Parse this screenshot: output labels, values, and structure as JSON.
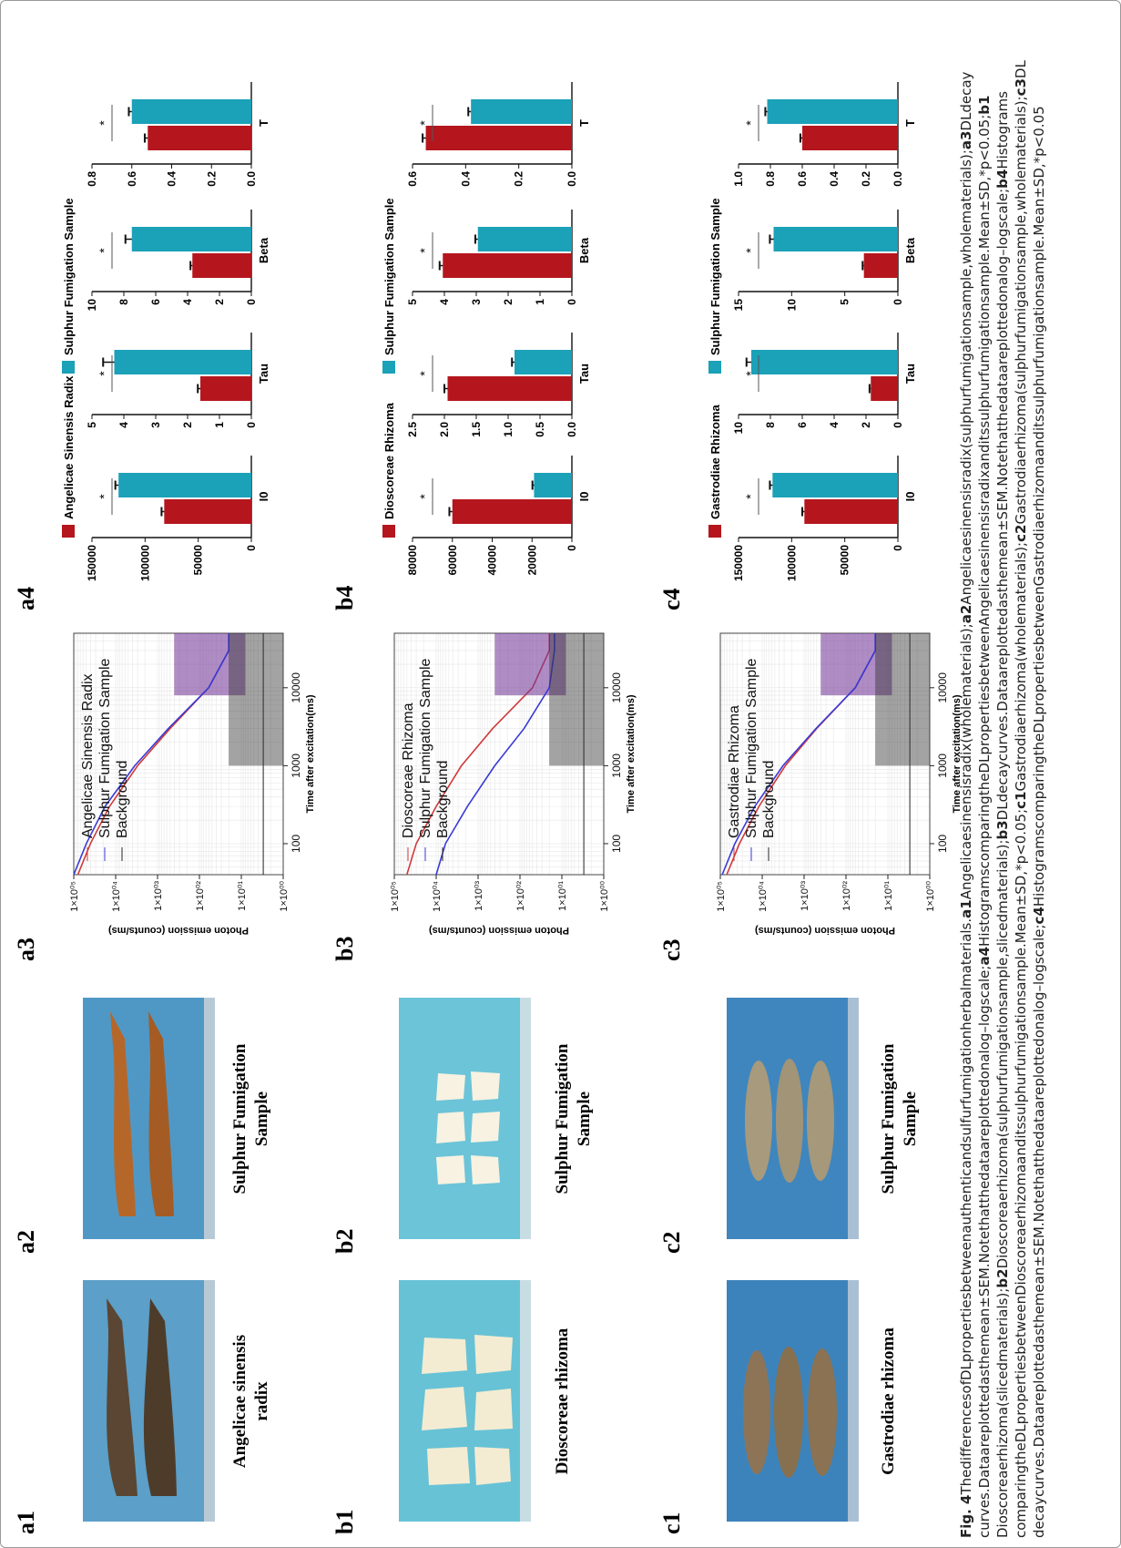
{
  "panels": {
    "a1": "a1",
    "a2": "a2",
    "a3": "a3",
    "a4": "a4",
    "b1": "b1",
    "b2": "b2",
    "b3": "b3",
    "b4": "b4",
    "c1": "c1",
    "c2": "c2",
    "c3": "c3",
    "c4": "c4"
  },
  "photos": {
    "a1": {
      "caption_lines": [
        "Angelicae sinensis",
        "radix"
      ],
      "bg": "#5c9fc8"
    },
    "a2": {
      "caption_lines": [
        "Sulphur Fumigation",
        "Sample"
      ],
      "bg": "#4f98c6"
    },
    "b1": {
      "caption_lines": [
        "Dioscoreae rhizoma"
      ],
      "bg": "#67c2d6"
    },
    "b2": {
      "caption_lines": [
        "Sulphur Fumigation",
        "Sample"
      ],
      "bg": "#6cc4d8"
    },
    "c1": {
      "caption_lines": [
        "Gastrodiae rhizoma"
      ],
      "bg": "#3d83bb"
    },
    "c2": {
      "caption_lines": [
        "Sulphur Fumigation",
        "Sample"
      ],
      "bg": "#3f86be"
    }
  },
  "colors": {
    "authentic": "#b5161d",
    "sulphur": "#1ba1b8",
    "authentic_curve": "#cf3a3a",
    "sulphur_curve": "#3a3ad6",
    "background_curve": "#222222"
  },
  "decay_common": {
    "ylabel": "Photon emission (counts/ms)",
    "xlabel": "Time after excitation(ms)",
    "y_ticks": [
      "1×10⁰⁵",
      "1×10⁰⁴",
      "1×10⁰³",
      "1×10⁰²",
      "1×10⁰¹",
      "1×10⁰⁰"
    ],
    "x_ticks": [
      "100",
      "1000",
      "10000"
    ]
  },
  "legends": {
    "a": {
      "authentic": "Angelicae Sinensis Radix",
      "sulphur": "Sulphur Fumigation Sample"
    },
    "b": {
      "authentic": "Dioscoreae Rhizoma",
      "sulphur": "Sulphur Fumigation Sample"
    },
    "c": {
      "authentic": "Gastrodiae Rhizoma",
      "sulphur": "Sulphur Fumigation Sample"
    },
    "background": "Background"
  },
  "chart_data": [
    {
      "panel": "a3",
      "type": "line",
      "xscale": "log",
      "yscale": "log",
      "xlabel": "Time after excitation(ms)",
      "ylabel": "Photon emission (counts/ms)",
      "xlim": [
        40,
        50000
      ],
      "ylim": [
        1,
        100000
      ],
      "series": [
        {
          "name": "Angelicae Sinensis Radix",
          "x": [
            40,
            100,
            300,
            1000,
            3000,
            10000,
            30000,
            50000
          ],
          "y": [
            80000,
            40000,
            14000,
            3000,
            500,
            60,
            20,
            20
          ]
        },
        {
          "name": "Sulphur Fumigation Sample",
          "x": [
            40,
            100,
            300,
            1000,
            3000,
            10000,
            30000,
            50000
          ],
          "y": [
            100000,
            50000,
            18000,
            3500,
            550,
            60,
            20,
            20
          ]
        },
        {
          "name": "Background",
          "x": [
            40,
            100,
            1000,
            10000,
            50000
          ],
          "y": [
            3,
            3,
            3,
            3,
            3
          ]
        }
      ]
    },
    {
      "panel": "b3",
      "type": "line",
      "xscale": "log",
      "yscale": "log",
      "xlabel": "Time after excitation(ms)",
      "ylabel": "Photon emission (counts/ms)",
      "xlim": [
        40,
        50000
      ],
      "ylim": [
        1,
        100000
      ],
      "series": [
        {
          "name": "Dioscoreae Rhizoma",
          "x": [
            40,
            100,
            300,
            1000,
            3000,
            10000,
            30000,
            50000
          ],
          "y": [
            50000,
            30000,
            10000,
            2500,
            450,
            50,
            20,
            20
          ]
        },
        {
          "name": "Sulphur Fumigation Sample",
          "x": [
            40,
            100,
            300,
            1000,
            3000,
            10000,
            30000,
            50000
          ],
          "y": [
            10000,
            6000,
            1800,
            400,
            80,
            20,
            15,
            15
          ]
        },
        {
          "name": "Background",
          "x": [
            40,
            100,
            1000,
            10000,
            50000
          ],
          "y": [
            3,
            3,
            3,
            3,
            3
          ]
        }
      ]
    },
    {
      "panel": "c3",
      "type": "line",
      "xscale": "log",
      "yscale": "log",
      "xlabel": "Time after excitation(ms)",
      "ylabel": "Photon emission (counts/ms)",
      "xlim": [
        40,
        50000
      ],
      "ylim": [
        1,
        100000
      ],
      "series": [
        {
          "name": "Gastrodiae Rhizoma",
          "x": [
            40,
            100,
            300,
            1000,
            3000,
            10000,
            30000,
            50000
          ],
          "y": [
            70000,
            35000,
            12000,
            2800,
            500,
            60,
            20,
            20
          ]
        },
        {
          "name": "Sulphur Fumigation Sample",
          "x": [
            40,
            100,
            300,
            1000,
            3000,
            10000,
            30000,
            50000
          ],
          "y": [
            90000,
            45000,
            15000,
            3200,
            520,
            60,
            20,
            20
          ]
        },
        {
          "name": "Background",
          "x": [
            40,
            100,
            1000,
            10000,
            50000
          ],
          "y": [
            3,
            3,
            3,
            3,
            3
          ]
        }
      ]
    },
    {
      "panel": "a4",
      "type": "bar",
      "categories": [
        "I0",
        "Tau",
        "Beta",
        "T"
      ],
      "series": [
        {
          "name": "Angelicae Sinensis Radix",
          "values": [
            82000,
            1.6,
            3.7,
            0.52
          ],
          "errors": [
            2500,
            0.08,
            0.12,
            0.015
          ]
        },
        {
          "name": "Sulphur Fumigation Sample",
          "values": [
            125000,
            4.3,
            7.5,
            0.6
          ],
          "errors": [
            3000,
            0.35,
            0.4,
            0.015
          ]
        }
      ],
      "ylims": [
        [
          0,
          150000
        ],
        [
          0,
          5
        ],
        [
          0,
          10
        ],
        [
          0,
          0.8
        ]
      ],
      "yticks": [
        [
          "150000",
          "100000",
          "50000",
          "0"
        ],
        [
          "5",
          "4",
          "3",
          "2",
          "1",
          "0"
        ],
        [
          "10",
          "8",
          "6",
          "4",
          "2",
          "0"
        ],
        [
          "0.8",
          "0.6",
          "0.4",
          "0.2",
          "0.0"
        ]
      ],
      "significance": [
        "*",
        "*",
        "*",
        "*"
      ]
    },
    {
      "panel": "b4",
      "type": "bar",
      "categories": [
        "I0",
        "Tau",
        "Beta",
        "T"
      ],
      "series": [
        {
          "name": "Dioscoreae Rhizoma",
          "values": [
            60000,
            1.95,
            4.05,
            0.55
          ],
          "errors": [
            1500,
            0.05,
            0.1,
            0.012
          ]
        },
        {
          "name": "Sulphur Fumigation Sample",
          "values": [
            19000,
            0.9,
            2.95,
            0.38
          ],
          "errors": [
            800,
            0.04,
            0.08,
            0.01
          ]
        }
      ],
      "ylims": [
        [
          0,
          80000
        ],
        [
          0,
          2.5
        ],
        [
          0,
          5
        ],
        [
          0,
          0.6
        ]
      ],
      "yticks": [
        [
          "80000",
          "60000",
          "40000",
          "20000",
          "0"
        ],
        [
          "2.5",
          "2.0",
          "1.5",
          "1.0",
          "0.5",
          "0.0"
        ],
        [
          "5",
          "4",
          "3",
          "2",
          "1",
          "0"
        ],
        [
          "0.6",
          "0.4",
          "0.2",
          "0.0"
        ]
      ],
      "significance": [
        "*",
        "*",
        "*",
        "*"
      ]
    },
    {
      "panel": "c4",
      "type": "bar",
      "categories": [
        "I0",
        "Tau",
        "Beta",
        "T"
      ],
      "series": [
        {
          "name": "Gastrodiae Rhizoma",
          "values": [
            88000,
            1.7,
            3.2,
            0.6
          ],
          "errors": [
            2000,
            0.08,
            0.12,
            0.012
          ]
        },
        {
          "name": "Sulphur Fumigation Sample",
          "values": [
            118000,
            9.2,
            11.7,
            0.82
          ],
          "errors": [
            2500,
            0.3,
            0.35,
            0.012
          ]
        }
      ],
      "ylims": [
        [
          0,
          150000
        ],
        [
          0,
          10
        ],
        [
          0,
          15
        ],
        [
          0,
          1.0
        ]
      ],
      "yticks": [
        [
          "150000",
          "100000",
          "50000",
          "0"
        ],
        [
          "10",
          "8",
          "6",
          "4",
          "2",
          "0"
        ],
        [
          "15",
          "10",
          "5",
          "0"
        ],
        [
          "1.0",
          "0.8",
          "0.6",
          "0.4",
          "0.2",
          "0.0"
        ]
      ],
      "significance": [
        "*",
        "*",
        "*",
        "*"
      ]
    }
  ],
  "caption": {
    "fig_label": "Fig. 4",
    "runs": [
      {
        "t": "The differences of DL properties between authentic and sulfur fumigation herbal materials. ",
        "b": false
      },
      {
        "t": "a1",
        "b": true
      },
      {
        "t": " Angelicae sinensis radix (whole materials); ",
        "b": false
      },
      {
        "t": "a2",
        "b": true
      },
      {
        "t": " Angelicae sinensis radix (sulphur fumigation sample, whole materials); ",
        "b": false
      },
      {
        "t": "a3",
        "b": true
      },
      {
        "t": " DL decay curves. Data are plotted as the mean ± SEM. Note that the data are plotted on a log–log scale; ",
        "b": false
      },
      {
        "t": "a4",
        "b": true
      },
      {
        "t": " Histograms comparing the DL properties between Angelicae sinensis radix and its sulphur fumigation sample. Mean ± SD, *p < 0.05; ",
        "b": false
      },
      {
        "t": "b1",
        "b": true
      },
      {
        "t": " Dioscoreae rhizoma (sliced materials); ",
        "b": false
      },
      {
        "t": "b2",
        "b": true
      },
      {
        "t": " Dioscoreae rhizoma (sulphur fumigation sample, sliced materials); ",
        "b": false
      },
      {
        "t": "b3",
        "b": true
      },
      {
        "t": " DL decay curves. Data are plotted as the mean ± SEM. Note that the data are plotted on a log–log scale; ",
        "b": false
      },
      {
        "t": "b4",
        "b": true
      },
      {
        "t": " Histograms comparing the DL properties between Dioscoreae rhizoma and its sulphur fumigation sample. Mean ± SD, *p < 0.05; ",
        "b": false
      },
      {
        "t": "c1",
        "b": true
      },
      {
        "t": " Gastrodiae rhizoma (whole materials); ",
        "b": false
      },
      {
        "t": "c2",
        "b": true
      },
      {
        "t": " Gastrodiae rhizoma (sulphur fumigation sample, whole materials); ",
        "b": false
      },
      {
        "t": "c3",
        "b": true
      },
      {
        "t": " DL decay curves. Data are plotted as the mean ± SEM. Note that the data are plotted on a log–log scale; ",
        "b": false
      },
      {
        "t": "c4",
        "b": true
      },
      {
        "t": " Histograms comparing the DL properties between Gastrodiae rhizoma and its sulphur fumigation sample. Mean ± SD, *p < 0.05",
        "b": false
      }
    ]
  }
}
